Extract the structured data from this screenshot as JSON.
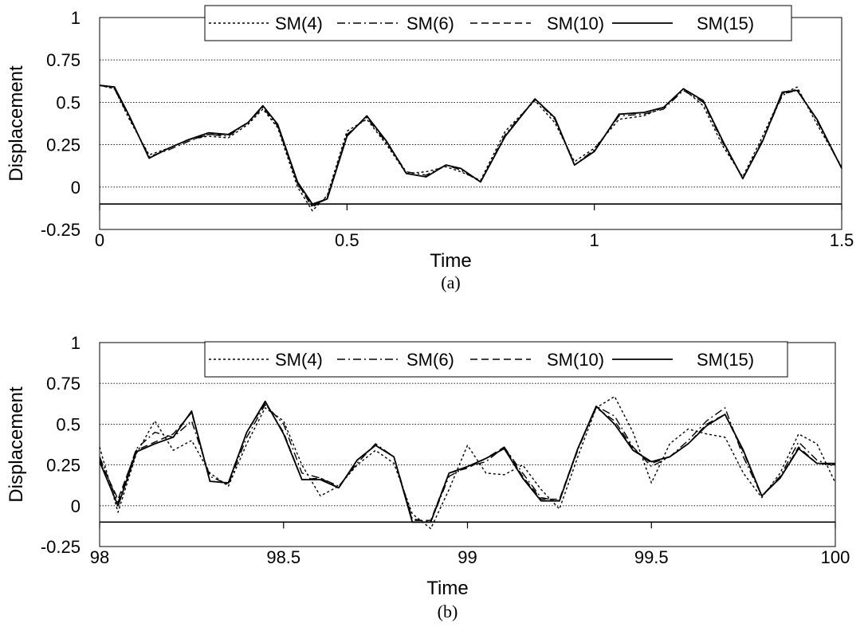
{
  "chart_data": [
    {
      "type": "line",
      "caption": "(a)",
      "xlabel": "Time",
      "ylabel": "Displacement",
      "xlim": [
        0,
        1.5
      ],
      "ylim": [
        -0.25,
        1
      ],
      "xticks": [
        0,
        0.5,
        1,
        1.5
      ],
      "xtick_labels": [
        "0",
        "0.5",
        "1",
        "1.5"
      ],
      "yticks": [
        -0.25,
        0,
        0.25,
        0.5,
        0.75,
        1
      ],
      "ytick_labels": [
        "-0.25",
        "0",
        "0.25",
        "0.5",
        "0.75",
        "1"
      ],
      "baseline": -0.1,
      "grid": "horizontal dotted",
      "legend": "top",
      "series": [
        {
          "name": "SM(4)",
          "style": "dotted",
          "x": [
            0,
            0.03,
            0.06,
            0.1,
            0.14,
            0.18,
            0.22,
            0.26,
            0.3,
            0.33,
            0.36,
            0.4,
            0.43,
            0.46,
            0.5,
            0.54,
            0.58,
            0.62,
            0.66,
            0.7,
            0.73,
            0.77,
            0.82,
            0.88,
            0.92,
            0.96,
            1.0,
            1.05,
            1.1,
            1.14,
            1.18,
            1.22,
            1.26,
            1.3,
            1.34,
            1.38,
            1.41,
            1.45,
            1.5
          ],
          "y": [
            0.6,
            0.58,
            0.4,
            0.19,
            0.23,
            0.28,
            0.3,
            0.29,
            0.37,
            0.46,
            0.35,
            0.0,
            -0.14,
            -0.05,
            0.33,
            0.4,
            0.25,
            0.08,
            0.09,
            0.12,
            0.09,
            0.04,
            0.33,
            0.51,
            0.38,
            0.15,
            0.23,
            0.4,
            0.42,
            0.47,
            0.58,
            0.48,
            0.24,
            0.06,
            0.3,
            0.55,
            0.59,
            0.37,
            0.12
          ]
        },
        {
          "name": "SM(6)",
          "style": "dashdot",
          "x": [
            0,
            0.03,
            0.06,
            0.1,
            0.14,
            0.18,
            0.22,
            0.26,
            0.3,
            0.33,
            0.36,
            0.4,
            0.43,
            0.46,
            0.5,
            0.54,
            0.58,
            0.62,
            0.66,
            0.7,
            0.73,
            0.77,
            0.82,
            0.88,
            0.92,
            0.96,
            1.0,
            1.05,
            1.1,
            1.14,
            1.18,
            1.22,
            1.26,
            1.3,
            1.34,
            1.38,
            1.41,
            1.45,
            1.5
          ],
          "y": [
            0.6,
            0.58,
            0.41,
            0.18,
            0.22,
            0.27,
            0.31,
            0.3,
            0.38,
            0.47,
            0.36,
            0.02,
            -0.12,
            -0.06,
            0.31,
            0.41,
            0.26,
            0.09,
            0.07,
            0.13,
            0.1,
            0.03,
            0.31,
            0.52,
            0.4,
            0.13,
            0.22,
            0.42,
            0.43,
            0.46,
            0.57,
            0.5,
            0.26,
            0.05,
            0.28,
            0.54,
            0.58,
            0.39,
            0.11
          ]
        },
        {
          "name": "SM(10)",
          "style": "dashed",
          "x": [
            0,
            0.03,
            0.06,
            0.1,
            0.14,
            0.18,
            0.22,
            0.26,
            0.3,
            0.33,
            0.36,
            0.4,
            0.43,
            0.46,
            0.5,
            0.54,
            0.58,
            0.62,
            0.66,
            0.7,
            0.73,
            0.77,
            0.82,
            0.88,
            0.92,
            0.96,
            1.0,
            1.05,
            1.1,
            1.14,
            1.18,
            1.22,
            1.26,
            1.3,
            1.34,
            1.38,
            1.41,
            1.45,
            1.5
          ],
          "y": [
            0.6,
            0.59,
            0.42,
            0.17,
            0.23,
            0.28,
            0.31,
            0.31,
            0.38,
            0.48,
            0.37,
            0.02,
            -0.11,
            -0.07,
            0.3,
            0.42,
            0.27,
            0.08,
            0.06,
            0.13,
            0.11,
            0.03,
            0.3,
            0.52,
            0.41,
            0.13,
            0.21,
            0.43,
            0.44,
            0.47,
            0.58,
            0.51,
            0.27,
            0.05,
            0.27,
            0.55,
            0.57,
            0.4,
            0.11
          ]
        },
        {
          "name": "SM(15)",
          "style": "solid",
          "x": [
            0,
            0.03,
            0.06,
            0.1,
            0.14,
            0.18,
            0.22,
            0.26,
            0.3,
            0.33,
            0.36,
            0.4,
            0.43,
            0.46,
            0.5,
            0.54,
            0.58,
            0.62,
            0.66,
            0.7,
            0.73,
            0.77,
            0.82,
            0.88,
            0.92,
            0.96,
            1.0,
            1.05,
            1.1,
            1.14,
            1.18,
            1.22,
            1.26,
            1.3,
            1.34,
            1.38,
            1.41,
            1.45,
            1.5
          ],
          "y": [
            0.6,
            0.59,
            0.42,
            0.17,
            0.23,
            0.28,
            0.32,
            0.31,
            0.38,
            0.48,
            0.37,
            0.03,
            -0.1,
            -0.07,
            0.3,
            0.42,
            0.27,
            0.08,
            0.06,
            0.13,
            0.11,
            0.03,
            0.3,
            0.52,
            0.41,
            0.13,
            0.21,
            0.43,
            0.44,
            0.47,
            0.58,
            0.51,
            0.27,
            0.05,
            0.27,
            0.56,
            0.57,
            0.4,
            0.11
          ]
        }
      ]
    },
    {
      "type": "line",
      "caption": "(b)",
      "xlabel": "Time",
      "ylabel": "Displacement",
      "xlim": [
        98,
        100
      ],
      "ylim": [
        -0.25,
        1
      ],
      "xticks": [
        98,
        98.5,
        99,
        99.5,
        100
      ],
      "xtick_labels": [
        "98",
        "98.5",
        "99",
        "99.5",
        "100"
      ],
      "yticks": [
        -0.25,
        0,
        0.25,
        0.5,
        0.75,
        1
      ],
      "ytick_labels": [
        "-0.25",
        "0",
        "0.25",
        "0.5",
        "0.75",
        "1"
      ],
      "baseline": -0.1,
      "grid": "horizontal dotted",
      "legend": "top",
      "series": [
        {
          "name": "SM(4)",
          "style": "dotted",
          "x": [
            98,
            98.05,
            98.1,
            98.15,
            98.2,
            98.25,
            98.3,
            98.35,
            98.4,
            98.45,
            98.5,
            98.55,
            98.6,
            98.65,
            98.7,
            98.75,
            98.8,
            98.85,
            98.9,
            98.95,
            99.0,
            99.05,
            99.1,
            99.15,
            99.2,
            99.25,
            99.3,
            99.35,
            99.4,
            99.45,
            99.5,
            99.55,
            99.6,
            99.65,
            99.7,
            99.75,
            99.8,
            99.85,
            99.9,
            99.95,
            100.0
          ],
          "y": [
            0.36,
            -0.04,
            0.32,
            0.52,
            0.34,
            0.4,
            0.2,
            0.12,
            0.38,
            0.6,
            0.52,
            0.25,
            0.06,
            0.12,
            0.25,
            0.34,
            0.26,
            -0.05,
            -0.14,
            0.1,
            0.37,
            0.2,
            0.19,
            0.25,
            0.1,
            -0.02,
            0.3,
            0.6,
            0.67,
            0.45,
            0.14,
            0.38,
            0.47,
            0.44,
            0.42,
            0.2,
            0.05,
            0.2,
            0.44,
            0.38,
            0.14
          ]
        },
        {
          "name": "SM(6)",
          "style": "dashdot",
          "x": [
            98,
            98.05,
            98.1,
            98.15,
            98.2,
            98.25,
            98.3,
            98.35,
            98.4,
            98.45,
            98.5,
            98.55,
            98.6,
            98.65,
            98.7,
            98.75,
            98.8,
            98.85,
            98.9,
            98.95,
            99.0,
            99.05,
            99.1,
            99.15,
            99.2,
            99.25,
            99.3,
            99.35,
            99.4,
            99.45,
            99.5,
            99.55,
            99.6,
            99.65,
            99.7,
            99.75,
            99.8,
            99.85,
            99.9,
            99.95,
            100.0
          ],
          "y": [
            0.3,
            0.02,
            0.35,
            0.45,
            0.42,
            0.52,
            0.18,
            0.13,
            0.42,
            0.62,
            0.5,
            0.2,
            0.17,
            0.12,
            0.26,
            0.38,
            0.3,
            -0.08,
            -0.1,
            0.18,
            0.24,
            0.27,
            0.36,
            0.2,
            0.05,
            0.03,
            0.34,
            0.61,
            0.55,
            0.36,
            0.24,
            0.3,
            0.4,
            0.52,
            0.6,
            0.3,
            0.06,
            0.18,
            0.39,
            0.28,
            0.24
          ]
        },
        {
          "name": "SM(10)",
          "style": "dashed",
          "x": [
            98,
            98.05,
            98.1,
            98.15,
            98.2,
            98.25,
            98.3,
            98.35,
            98.4,
            98.45,
            98.5,
            98.55,
            98.6,
            98.65,
            98.7,
            98.75,
            98.8,
            98.85,
            98.9,
            98.95,
            99.0,
            99.05,
            99.1,
            99.15,
            99.2,
            99.25,
            99.3,
            99.35,
            99.4,
            99.45,
            99.5,
            99.55,
            99.6,
            99.65,
            99.7,
            99.75,
            99.8,
            99.85,
            99.9,
            99.95,
            100.0
          ],
          "y": [
            0.28,
            0.04,
            0.34,
            0.39,
            0.44,
            0.57,
            0.15,
            0.14,
            0.45,
            0.63,
            0.45,
            0.16,
            0.17,
            0.11,
            0.28,
            0.37,
            0.3,
            -0.09,
            -0.09,
            0.2,
            0.23,
            0.29,
            0.36,
            0.18,
            0.04,
            0.04,
            0.35,
            0.6,
            0.52,
            0.35,
            0.26,
            0.3,
            0.38,
            0.5,
            0.56,
            0.33,
            0.06,
            0.17,
            0.36,
            0.26,
            0.25
          ]
        },
        {
          "name": "SM(15)",
          "style": "solid",
          "x": [
            98,
            98.05,
            98.1,
            98.15,
            98.2,
            98.25,
            98.3,
            98.35,
            98.4,
            98.45,
            98.5,
            98.55,
            98.6,
            98.65,
            98.7,
            98.75,
            98.8,
            98.85,
            98.9,
            98.95,
            99.0,
            99.05,
            99.1,
            99.15,
            99.2,
            99.25,
            99.3,
            99.35,
            99.4,
            99.45,
            99.5,
            99.55,
            99.6,
            99.65,
            99.7,
            99.75,
            99.8,
            99.85,
            99.9,
            99.95,
            100.0
          ],
          "y": [
            0.27,
            0.0,
            0.33,
            0.38,
            0.42,
            0.58,
            0.15,
            0.14,
            0.45,
            0.64,
            0.44,
            0.16,
            0.16,
            0.11,
            0.28,
            0.37,
            0.3,
            -0.1,
            -0.1,
            0.2,
            0.24,
            0.29,
            0.35,
            0.17,
            0.03,
            0.03,
            0.35,
            0.61,
            0.5,
            0.34,
            0.27,
            0.3,
            0.38,
            0.49,
            0.56,
            0.34,
            0.06,
            0.17,
            0.35,
            0.26,
            0.26
          ]
        }
      ]
    }
  ]
}
